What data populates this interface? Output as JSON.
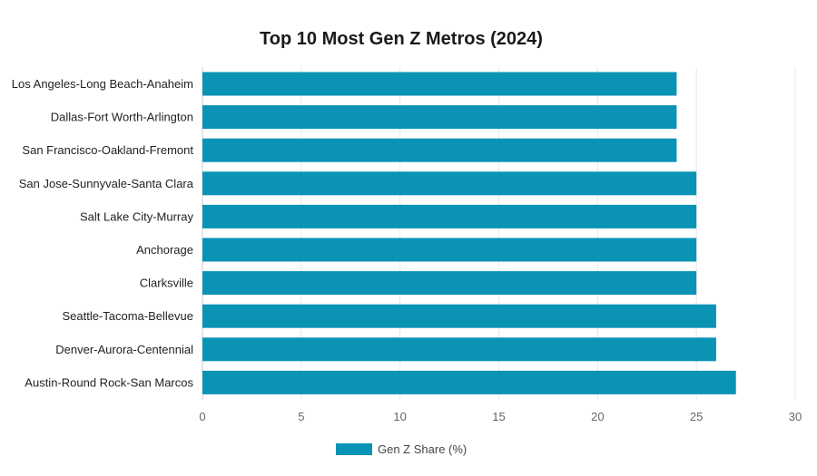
{
  "chart_data": {
    "type": "bar",
    "orientation": "horizontal",
    "title": "Top 10 Most Gen Z Metros (2024)",
    "categories": [
      "Los Angeles-Long Beach-Anaheim",
      "Dallas-Fort Worth-Arlington",
      "San Francisco-Oakland-Fremont",
      "San Jose-Sunnyvale-Santa Clara",
      "Salt Lake City-Murray",
      "Anchorage",
      "Clarksville",
      "Seattle-Tacoma-Bellevue",
      "Denver-Aurora-Centennial",
      "Austin-Round Rock-San Marcos"
    ],
    "series": [
      {
        "name": "Gen Z Share (%)",
        "values": [
          24,
          24,
          24,
          25,
          25,
          25,
          25,
          26,
          26,
          27
        ]
      }
    ],
    "xlim": [
      0,
      30
    ],
    "xticks": [
      0,
      5,
      10,
      15,
      20,
      25,
      30
    ],
    "xlabel": "",
    "ylabel": "",
    "grid": "vertical",
    "legend": "bottom-center",
    "colors": {
      "bar": "#0a93b5",
      "grid": "#e8e8e8"
    }
  }
}
